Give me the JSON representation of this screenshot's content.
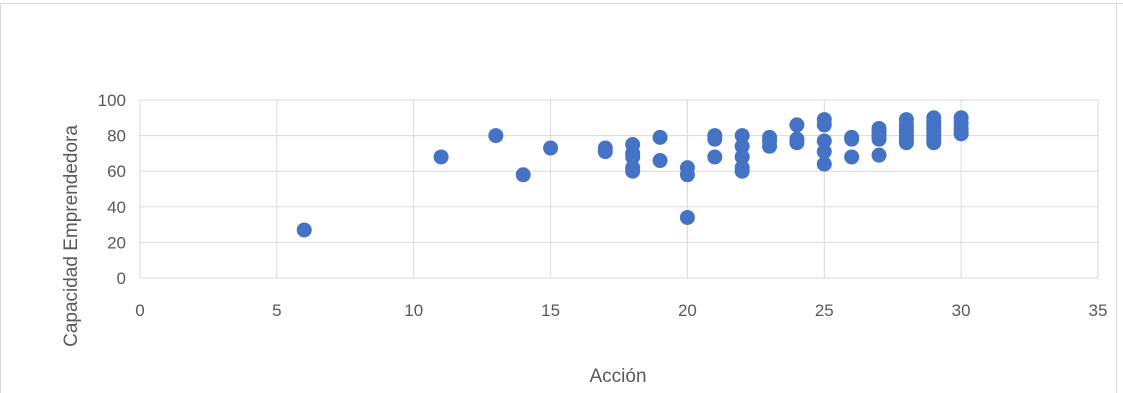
{
  "chart_data": {
    "type": "scatter",
    "title": "",
    "xlabel": "Acción",
    "ylabel": "Capacidad Emprendedora",
    "xlim": [
      0,
      35
    ],
    "ylim": [
      0,
      100
    ],
    "x_ticks": [
      0,
      5,
      10,
      15,
      20,
      25,
      30,
      35
    ],
    "y_ticks": [
      0,
      20,
      40,
      60,
      80,
      100
    ],
    "grid": "on",
    "legend": "none",
    "marker_color": "#4472c4",
    "gridline_color": "#d9d9d9",
    "series": [
      {
        "points": [
          [
            6,
            27
          ],
          [
            11,
            68
          ],
          [
            13,
            80
          ],
          [
            14,
            58
          ],
          [
            15,
            73
          ],
          [
            17,
            71
          ],
          [
            17,
            73
          ],
          [
            18,
            60
          ],
          [
            18,
            62
          ],
          [
            18,
            68
          ],
          [
            18,
            70
          ],
          [
            18,
            75
          ],
          [
            19,
            66
          ],
          [
            19,
            79
          ],
          [
            20,
            34
          ],
          [
            20,
            58
          ],
          [
            20,
            62
          ],
          [
            21,
            68
          ],
          [
            21,
            78
          ],
          [
            21,
            80
          ],
          [
            22,
            60
          ],
          [
            22,
            62
          ],
          [
            22,
            68
          ],
          [
            22,
            74
          ],
          [
            22,
            80
          ],
          [
            23,
            74
          ],
          [
            23,
            77
          ],
          [
            23,
            79
          ],
          [
            24,
            76
          ],
          [
            24,
            78
          ],
          [
            24,
            86
          ],
          [
            25,
            64
          ],
          [
            25,
            71
          ],
          [
            25,
            77
          ],
          [
            25,
            86
          ],
          [
            25,
            89
          ],
          [
            26,
            68
          ],
          [
            26,
            78
          ],
          [
            26,
            79
          ],
          [
            27,
            69
          ],
          [
            27,
            78
          ],
          [
            27,
            80
          ],
          [
            27,
            82
          ],
          [
            27,
            84
          ],
          [
            28,
            76
          ],
          [
            28,
            78
          ],
          [
            28,
            80
          ],
          [
            28,
            82
          ],
          [
            28,
            84
          ],
          [
            28,
            86
          ],
          [
            28,
            89
          ],
          [
            29,
            76
          ],
          [
            29,
            78
          ],
          [
            29,
            80
          ],
          [
            29,
            82
          ],
          [
            29,
            84
          ],
          [
            29,
            86
          ],
          [
            29,
            88
          ],
          [
            29,
            90
          ],
          [
            30,
            81
          ],
          [
            30,
            82
          ],
          [
            30,
            84
          ],
          [
            30,
            87
          ],
          [
            30,
            90
          ]
        ]
      }
    ]
  }
}
